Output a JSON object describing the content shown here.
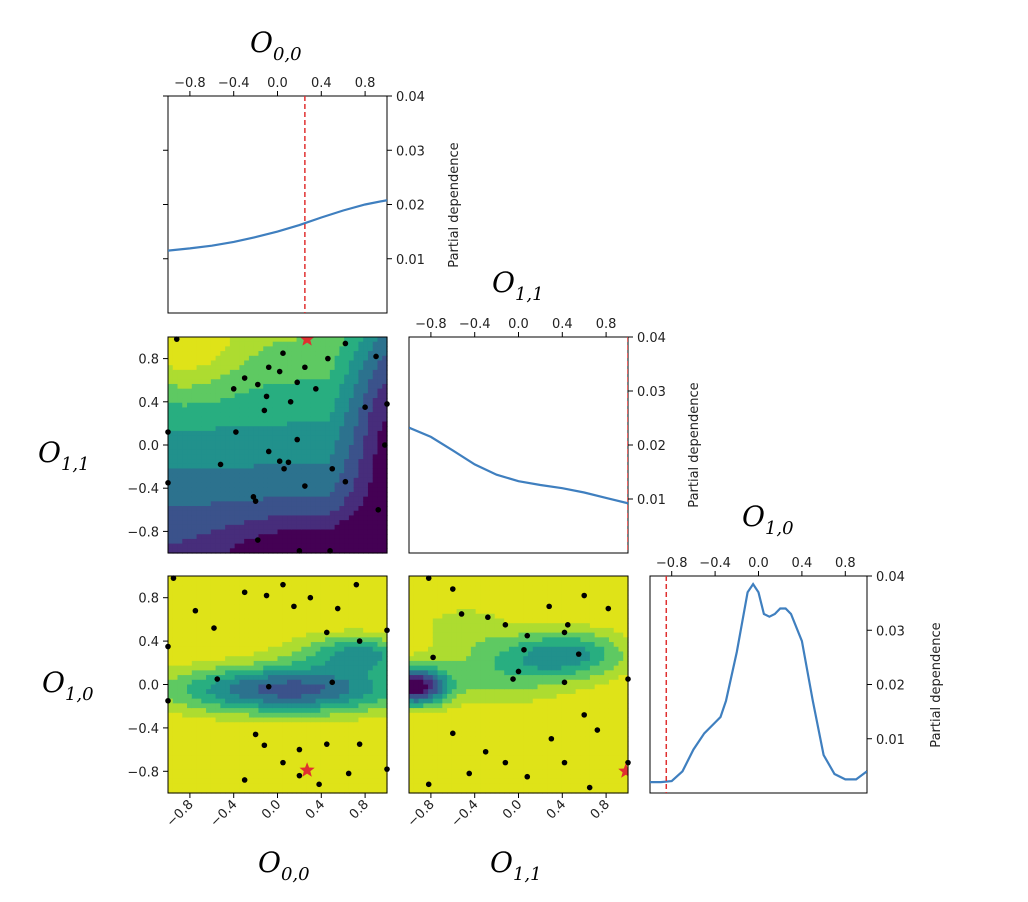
{
  "figure": {
    "ylabel": "Partial dependence",
    "variables": [
      {
        "base": "O",
        "sub": "0,0"
      },
      {
        "base": "O",
        "sub": "1,1"
      },
      {
        "base": "O",
        "sub": "1,0"
      }
    ]
  },
  "chart_data": [
    {
      "type": "line",
      "panel": "diag-0",
      "title": "O_{0,0}",
      "xlabel": "O_{0,0}",
      "ylabel": "Partial dependence",
      "xlim": [
        -1,
        1
      ],
      "ylim": [
        0,
        0.04
      ],
      "xticks": [
        -0.8,
        -0.4,
        0.0,
        0.4,
        0.8
      ],
      "xtick_labels": [
        "−0.8",
        "−0.4",
        "0.0",
        "0.4",
        "0.8"
      ],
      "yticks": [
        0.01,
        0.02,
        0.03,
        0.04
      ],
      "ytick_labels": [
        "0.01",
        "0.02",
        "0.03",
        "0.04"
      ],
      "series": [
        {
          "name": "partial dependence",
          "x": [
            -1,
            -0.8,
            -0.6,
            -0.4,
            -0.2,
            0.0,
            0.2,
            0.4,
            0.6,
            0.8,
            1.0
          ],
          "y": [
            0.0115,
            0.0119,
            0.0124,
            0.0131,
            0.014,
            0.015,
            0.0162,
            0.0176,
            0.0189,
            0.02,
            0.0208
          ]
        }
      ],
      "marker_x": 0.25
    },
    {
      "type": "line",
      "panel": "diag-1",
      "title": "O_{1,1}",
      "ylabel": "Partial dependence",
      "xlim": [
        -1,
        1
      ],
      "ylim": [
        0,
        0.04
      ],
      "xticks": [
        -0.8,
        -0.4,
        0.0,
        0.4,
        0.8
      ],
      "xtick_labels": [
        "−0.8",
        "−0.4",
        "0.0",
        "0.4",
        "0.8"
      ],
      "yticks": [
        0.01,
        0.02,
        0.03,
        0.04
      ],
      "ytick_labels": [
        "0.01",
        "0.02",
        "0.03",
        "0.04"
      ],
      "series": [
        {
          "name": "partial dependence",
          "x": [
            -1,
            -0.8,
            -0.6,
            -0.4,
            -0.2,
            0.0,
            0.2,
            0.4,
            0.6,
            0.8,
            1.0
          ],
          "y": [
            0.0232,
            0.0215,
            0.019,
            0.0164,
            0.0145,
            0.0133,
            0.0126,
            0.012,
            0.0112,
            0.0102,
            0.0092
          ]
        }
      ],
      "marker_x": 1.0
    },
    {
      "type": "line",
      "panel": "diag-2",
      "title": "O_{1,0}",
      "ylabel": "Partial dependence",
      "xlim": [
        -1,
        1
      ],
      "ylim": [
        0,
        0.04
      ],
      "xticks": [
        -0.8,
        -0.4,
        0.0,
        0.4,
        0.8
      ],
      "xtick_labels": [
        "−0.8",
        "−0.4",
        "0.0",
        "0.4",
        "0.8"
      ],
      "yticks": [
        0.01,
        0.02,
        0.03,
        0.04
      ],
      "ytick_labels": [
        "0.01",
        "0.02",
        "0.03",
        "0.04"
      ],
      "series": [
        {
          "name": "partial dependence",
          "x": [
            -1,
            -0.9,
            -0.8,
            -0.7,
            -0.6,
            -0.5,
            -0.4,
            -0.35,
            -0.3,
            -0.2,
            -0.1,
            -0.05,
            0.0,
            0.05,
            0.1,
            0.15,
            0.2,
            0.25,
            0.3,
            0.4,
            0.5,
            0.6,
            0.7,
            0.8,
            0.9,
            1.0
          ],
          "y": [
            0.002,
            0.002,
            0.0022,
            0.004,
            0.008,
            0.011,
            0.013,
            0.014,
            0.017,
            0.026,
            0.037,
            0.0385,
            0.037,
            0.033,
            0.0325,
            0.033,
            0.034,
            0.034,
            0.033,
            0.028,
            0.017,
            0.007,
            0.0035,
            0.0025,
            0.0025,
            0.004
          ]
        }
      ],
      "marker_x": -0.85
    },
    {
      "type": "heatmap",
      "panel": "contour-O11-vs-O00",
      "xlabel": "O_{0,0}",
      "ylabel": "O_{1,1}",
      "xlim": [
        -1,
        1
      ],
      "ylim": [
        -1,
        1
      ],
      "yticks": [
        -0.8,
        -0.4,
        0.0,
        0.4,
        0.8
      ],
      "ytick_labels": [
        "−0.8",
        "−0.4",
        "0.0",
        "0.4",
        "0.8"
      ],
      "colormap": "viridis",
      "levels": 9,
      "points": [
        [
          -0.92,
          0.98
        ],
        [
          -0.4,
          0.52
        ],
        [
          -0.3,
          0.62
        ],
        [
          -0.18,
          0.56
        ],
        [
          -0.1,
          0.45
        ],
        [
          -0.12,
          0.32
        ],
        [
          -0.08,
          0.72
        ],
        [
          0.02,
          0.68
        ],
        [
          0.25,
          0.72
        ],
        [
          0.18,
          0.58
        ],
        [
          0.05,
          0.85
        ],
        [
          0.35,
          0.52
        ],
        [
          0.12,
          0.4
        ],
        [
          0.46,
          0.8
        ],
        [
          0.62,
          0.94
        ],
        [
          0.8,
          0.35
        ],
        [
          0.9,
          0.82
        ],
        [
          -0.38,
          0.12
        ],
        [
          -0.52,
          -0.18
        ],
        [
          -0.22,
          -0.48
        ],
        [
          -0.2,
          -0.52
        ],
        [
          0.02,
          -0.15
        ],
        [
          0.06,
          -0.22
        ],
        [
          0.1,
          -0.16
        ],
        [
          0.18,
          0.05
        ],
        [
          -0.08,
          -0.06
        ],
        [
          0.25,
          -0.38
        ],
        [
          0.5,
          -0.22
        ],
        [
          0.62,
          -0.34
        ],
        [
          -0.18,
          -0.88
        ],
        [
          0.2,
          -0.98
        ],
        [
          0.48,
          -0.98
        ],
        [
          0.92,
          -0.6
        ],
        [
          -1,
          0.12
        ],
        [
          -1,
          -0.35
        ],
        [
          1,
          0.38
        ],
        [
          0.98,
          0.0
        ]
      ],
      "best": [
        0.27,
        0.98
      ]
    },
    {
      "type": "heatmap",
      "panel": "contour-O10-vs-O00",
      "xlabel": "O_{0,0}",
      "ylabel": "O_{1,0}",
      "xlim": [
        -1,
        1
      ],
      "ylim": [
        -1,
        1
      ],
      "xticks": [
        -0.8,
        -0.4,
        0.0,
        0.4,
        0.8
      ],
      "xtick_labels": [
        "−0.8",
        "−0.4",
        "0.0",
        "0.4",
        "0.8"
      ],
      "yticks": [
        -0.8,
        -0.4,
        0.0,
        0.4,
        0.8
      ],
      "ytick_labels": [
        "−0.8",
        "−0.4",
        "0.0",
        "0.4",
        "0.8"
      ],
      "colormap": "viridis",
      "levels": 9,
      "points": [
        [
          -0.95,
          0.98
        ],
        [
          -0.75,
          0.68
        ],
        [
          -0.58,
          0.52
        ],
        [
          -0.3,
          0.85
        ],
        [
          -0.1,
          0.82
        ],
        [
          0.05,
          0.92
        ],
        [
          0.15,
          0.72
        ],
        [
          0.3,
          0.8
        ],
        [
          0.55,
          0.7
        ],
        [
          0.72,
          0.92
        ],
        [
          0.45,
          0.48
        ],
        [
          -0.55,
          0.05
        ],
        [
          -0.08,
          -0.02
        ],
        [
          0.5,
          0.02
        ],
        [
          0.75,
          0.4
        ],
        [
          -0.2,
          -0.46
        ],
        [
          -0.12,
          -0.56
        ],
        [
          0.2,
          -0.6
        ],
        [
          0.45,
          -0.55
        ],
        [
          0.75,
          -0.55
        ],
        [
          -0.3,
          -0.88
        ],
        [
          0.05,
          -0.72
        ],
        [
          0.2,
          -0.84
        ],
        [
          0.38,
          -0.92
        ],
        [
          0.65,
          -0.82
        ],
        [
          -1,
          -0.15
        ],
        [
          -1,
          0.35
        ],
        [
          1,
          0.5
        ],
        [
          1,
          -0.78
        ]
      ],
      "best": [
        0.27,
        -0.79
      ]
    },
    {
      "type": "heatmap",
      "panel": "contour-O10-vs-O11",
      "xlabel": "O_{1,1}",
      "xlim": [
        -1,
        1
      ],
      "ylim": [
        -1,
        1
      ],
      "xticks": [
        -0.8,
        -0.4,
        0.0,
        0.4,
        0.8
      ],
      "xtick_labels": [
        "−0.8",
        "−0.4",
        "0.0",
        "0.4",
        "0.8"
      ],
      "colormap": "viridis",
      "levels": 9,
      "points": [
        [
          -0.82,
          0.98
        ],
        [
          -0.52,
          0.65
        ],
        [
          -0.28,
          0.62
        ],
        [
          -0.12,
          0.55
        ],
        [
          0.08,
          0.45
        ],
        [
          0.28,
          0.72
        ],
        [
          0.45,
          0.55
        ],
        [
          0.6,
          0.82
        ],
        [
          0.82,
          0.7
        ],
        [
          -0.6,
          0.88
        ],
        [
          0.05,
          0.32
        ],
        [
          0.42,
          0.48
        ],
        [
          0.55,
          0.28
        ],
        [
          -0.78,
          0.25
        ],
        [
          0.0,
          0.12
        ],
        [
          -0.05,
          0.05
        ],
        [
          0.42,
          0.02
        ],
        [
          0.6,
          -0.28
        ],
        [
          0.72,
          -0.42
        ],
        [
          -0.6,
          -0.45
        ],
        [
          -0.3,
          -0.62
        ],
        [
          -0.12,
          -0.72
        ],
        [
          0.08,
          -0.85
        ],
        [
          0.3,
          -0.5
        ],
        [
          0.42,
          -0.72
        ],
        [
          0.65,
          -0.95
        ],
        [
          -0.45,
          -0.82
        ],
        [
          -0.82,
          -0.92
        ],
        [
          1,
          0.05
        ],
        [
          1,
          -0.72
        ]
      ],
      "best": [
        0.98,
        -0.8
      ]
    }
  ]
}
